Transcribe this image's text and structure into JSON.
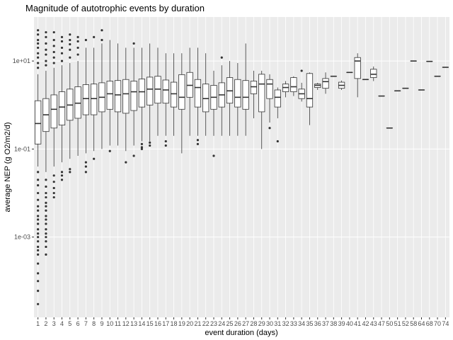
{
  "chart_data": {
    "type": "boxplot",
    "title": "Magnitude of autotrophic events by duration",
    "xlabel": "event duration (days)",
    "ylabel": "average NEP (g O2/m2/d)",
    "y_scale": "log10",
    "ylim": [
      1.5e-05,
      100
    ],
    "y_ticks": [
      {
        "value": 0.001,
        "label": "1e-03"
      },
      {
        "value": 0.1,
        "label": "1e-01"
      },
      {
        "value": 10,
        "label": "1e+01"
      }
    ],
    "colors": {
      "panel": "#ebebeb",
      "grid_major": "#ffffff",
      "grid_minor": "#f5f5f5",
      "box_fill": "#ffffff",
      "box_line": "#333333",
      "point": "#333333",
      "tick_text": "#4d4d4d"
    },
    "categories": [
      "1",
      "2",
      "3",
      "4",
      "5",
      "6",
      "7",
      "8",
      "9",
      "10",
      "11",
      "12",
      "13",
      "14",
      "15",
      "16",
      "17",
      "18",
      "19",
      "20",
      "21",
      "22",
      "23",
      "24",
      "25",
      "26",
      "27",
      "28",
      "29",
      "30",
      "31",
      "32",
      "33",
      "34",
      "35",
      "36",
      "37",
      "38",
      "39",
      "40",
      "41",
      "42",
      "43",
      "47",
      "50",
      "51",
      "52",
      "58",
      "64",
      "68",
      "70",
      "74"
    ],
    "boxes": [
      {
        "x": "1",
        "min": 0.04,
        "q1": 0.13,
        "median": 0.38,
        "q3": 1.25,
        "max": 5,
        "outliers": [
          7,
          9,
          12,
          15,
          20,
          25,
          30,
          40,
          50,
          0.03,
          0.02,
          0.015,
          0.01,
          0.007,
          0.005,
          0.004,
          0.003,
          0.0025,
          0.002,
          0.0015,
          0.0012,
          0.001,
          0.0008,
          0.0006,
          0.0005,
          0.0004,
          0.00025,
          0.00015,
          0.0001,
          6e-05,
          3e-05
        ]
      },
      {
        "x": "2",
        "min": 0.03,
        "q1": 0.25,
        "median": 0.6,
        "q3": 1.4,
        "max": 6,
        "outliers": [
          8,
          10,
          14,
          18,
          25,
          35,
          45,
          0.02,
          0.014,
          0.01,
          0.008,
          0.006,
          0.005,
          0.004,
          0.003,
          0.0025,
          0.002,
          0.0015,
          0.0012,
          0.001,
          0.0008,
          0.0006,
          0.0004
        ]
      },
      {
        "x": "3",
        "min": 0.04,
        "q1": 0.3,
        "median": 0.8,
        "q3": 1.7,
        "max": 7,
        "outliers": [
          9,
          12,
          16,
          22,
          30,
          45,
          0.025,
          0.018,
          0.013,
          0.01,
          0.008
        ]
      },
      {
        "x": "4",
        "min": 0.05,
        "q1": 0.35,
        "median": 0.9,
        "q3": 2.0,
        "max": 8,
        "outliers": [
          10,
          15,
          20,
          28,
          35,
          0.03,
          0.025,
          0.02
        ]
      },
      {
        "x": "5",
        "min": 0.06,
        "q1": 0.45,
        "median": 1.0,
        "q3": 2.3,
        "max": 9,
        "outliers": [
          12,
          18,
          24,
          30,
          40,
          0.035,
          0.03
        ]
      },
      {
        "x": "6",
        "min": 0.07,
        "q1": 0.5,
        "median": 1.1,
        "q3": 2.6,
        "max": 10,
        "outliers": [
          14,
          20,
          28,
          35
        ]
      },
      {
        "x": "7",
        "min": 0.08,
        "q1": 0.6,
        "median": 1.4,
        "q3": 2.9,
        "max": 20,
        "outliers": [
          30,
          0.05,
          0.04,
          0.03
        ]
      },
      {
        "x": "8",
        "min": 0.09,
        "q1": 0.6,
        "median": 1.4,
        "q3": 3.0,
        "max": 20,
        "outliers": [
          35,
          0.06
        ]
      },
      {
        "x": "9",
        "min": 0.1,
        "q1": 0.7,
        "median": 1.5,
        "q3": 3.2,
        "max": 25,
        "outliers": [
          30,
          50
        ]
      },
      {
        "x": "10",
        "min": 0.12,
        "q1": 0.8,
        "median": 1.8,
        "q3": 3.5,
        "max": 30,
        "outliers": [
          0.09
        ]
      },
      {
        "x": "11",
        "min": 0.12,
        "q1": 0.7,
        "median": 1.7,
        "q3": 3.6,
        "max": 25,
        "outliers": []
      },
      {
        "x": "12",
        "min": 0.09,
        "q1": 0.65,
        "median": 1.8,
        "q3": 3.8,
        "max": 20,
        "outliers": [
          0.05
        ]
      },
      {
        "x": "13",
        "min": 0.12,
        "q1": 0.75,
        "median": 2.0,
        "q3": 3.5,
        "max": 20,
        "outliers": [
          25,
          0.07
        ]
      },
      {
        "x": "14",
        "min": 0.15,
        "q1": 0.9,
        "median": 2.0,
        "q3": 3.9,
        "max": 20,
        "outliers": [
          0.13,
          0.11,
          0.1
        ]
      },
      {
        "x": "15",
        "min": 0.15,
        "q1": 1.0,
        "median": 2.3,
        "q3": 4.3,
        "max": 25,
        "outliers": [
          0.14,
          0.12
        ]
      },
      {
        "x": "16",
        "min": 0.2,
        "q1": 1.1,
        "median": 2.3,
        "q3": 4.5,
        "max": 20,
        "outliers": []
      },
      {
        "x": "17",
        "min": 0.2,
        "q1": 1.1,
        "median": 2.2,
        "q3": 3.7,
        "max": 15,
        "outliers": [
          0.15,
          0.12
        ]
      },
      {
        "x": "18",
        "min": 0.2,
        "q1": 0.9,
        "median": 1.8,
        "q3": 3.3,
        "max": 15,
        "outliers": []
      },
      {
        "x": "19",
        "min": 0.08,
        "q1": 0.8,
        "median": 1.5,
        "q3": 4.9,
        "max": 15,
        "outliers": []
      },
      {
        "x": "20",
        "min": 0.2,
        "q1": 1.5,
        "median": 2.8,
        "q3": 5.5,
        "max": 20,
        "outliers": []
      },
      {
        "x": "21",
        "min": 0.2,
        "q1": 0.9,
        "median": 2.5,
        "q3": 3.8,
        "max": 20,
        "outliers": [
          0.16,
          0.13
        ]
      },
      {
        "x": "22",
        "min": 0.2,
        "q1": 0.7,
        "median": 1.4,
        "q3": 3.0,
        "max": 15,
        "outliers": []
      },
      {
        "x": "23",
        "min": 0.2,
        "q1": 0.8,
        "median": 1.5,
        "q3": 2.8,
        "max": 6,
        "outliers": [
          0.07
        ]
      },
      {
        "x": "24",
        "min": 0.2,
        "q1": 0.9,
        "median": 1.7,
        "q3": 3.2,
        "max": 8,
        "outliers": [
          12
        ]
      },
      {
        "x": "25",
        "min": 0.2,
        "q1": 1.1,
        "median": 2.1,
        "q3": 4.2,
        "max": 10,
        "outliers": []
      },
      {
        "x": "26",
        "min": 0.2,
        "q1": 0.9,
        "median": 1.5,
        "q3": 3.8,
        "max": 9,
        "outliers": []
      },
      {
        "x": "27",
        "min": 0.2,
        "q1": 0.8,
        "median": 1.5,
        "q3": 3.6,
        "max": 25,
        "outliers": []
      },
      {
        "x": "28",
        "min": 0.5,
        "q1": 1.8,
        "median": 2.6,
        "q3": 3.5,
        "max": 6,
        "outliers": []
      },
      {
        "x": "29",
        "min": 0.1,
        "q1": 0.7,
        "median": 3.0,
        "q3": 5.0,
        "max": 6,
        "outliers": []
      },
      {
        "x": "30",
        "min": 0.4,
        "q1": 1.4,
        "median": 3.0,
        "q3": 3.8,
        "max": 5,
        "outliers": [
          0.3
        ]
      },
      {
        "x": "31",
        "min": 0.5,
        "q1": 0.9,
        "median": 1.5,
        "q3": 2.2,
        "max": 2.5,
        "outliers": [
          0.15
        ]
      },
      {
        "x": "32",
        "min": 1.5,
        "q1": 2.0,
        "median": 2.5,
        "q3": 3.0,
        "max": 3.5,
        "outliers": []
      },
      {
        "x": "33",
        "min": 1.6,
        "q1": 2.0,
        "median": 2.6,
        "q3": 4.2,
        "max": 4.5,
        "outliers": []
      },
      {
        "x": "34",
        "min": 1.2,
        "q1": 1.4,
        "median": 1.8,
        "q3": 2.3,
        "max": 3.2,
        "outliers": [
          6
        ]
      },
      {
        "x": "35",
        "min": 0.35,
        "q1": 0.9,
        "median": 1.4,
        "q3": 5.2,
        "max": 5.5,
        "outliers": []
      },
      {
        "x": "36",
        "min": 2.2,
        "q1": 2.5,
        "median": 2.8,
        "q3": 3.0,
        "max": 3.2,
        "outliers": []
      },
      {
        "x": "37",
        "min": 1.8,
        "q1": 2.4,
        "median": 3.4,
        "q3": 4.0,
        "max": 5.5,
        "outliers": []
      },
      {
        "x": "38",
        "min": 4.5,
        "q1": 4.5,
        "median": 4.5,
        "q3": 4.5,
        "max": 4.5,
        "outliers": []
      },
      {
        "x": "39",
        "min": 2.2,
        "q1": 2.4,
        "median": 2.8,
        "q3": 3.3,
        "max": 3.6,
        "outliers": []
      },
      {
        "x": "40",
        "min": 5.5,
        "q1": 5.5,
        "median": 5.5,
        "q3": 5.5,
        "max": 5.5,
        "outliers": []
      },
      {
        "x": "41",
        "min": 1.5,
        "q1": 4.0,
        "median": 10.0,
        "q3": 12.0,
        "max": 15,
        "outliers": []
      },
      {
        "x": "42",
        "min": 3.8,
        "q1": 3.8,
        "median": 3.8,
        "q3": 3.8,
        "max": 3.8,
        "outliers": []
      },
      {
        "x": "43",
        "min": 3.5,
        "q1": 4.2,
        "median": 5.0,
        "q3": 6.5,
        "max": 7.5,
        "outliers": []
      },
      {
        "x": "47",
        "min": 1.6,
        "q1": 1.6,
        "median": 1.6,
        "q3": 1.6,
        "max": 1.6,
        "outliers": []
      },
      {
        "x": "50",
        "min": 0.3,
        "q1": 0.3,
        "median": 0.3,
        "q3": 0.3,
        "max": 0.3,
        "outliers": []
      },
      {
        "x": "51",
        "min": 2.1,
        "q1": 2.1,
        "median": 2.1,
        "q3": 2.1,
        "max": 2.1,
        "outliers": []
      },
      {
        "x": "52",
        "min": 2.4,
        "q1": 2.4,
        "median": 2.4,
        "q3": 2.4,
        "max": 2.4,
        "outliers": []
      },
      {
        "x": "58",
        "min": 10,
        "q1": 10,
        "median": 10,
        "q3": 10,
        "max": 10,
        "outliers": []
      },
      {
        "x": "64",
        "min": 2.2,
        "q1": 2.2,
        "median": 2.2,
        "q3": 2.2,
        "max": 2.2,
        "outliers": []
      },
      {
        "x": "68",
        "min": 9.8,
        "q1": 9.8,
        "median": 9.8,
        "q3": 9.8,
        "max": 9.8,
        "outliers": []
      },
      {
        "x": "70",
        "min": 4.5,
        "q1": 4.5,
        "median": 4.5,
        "q3": 4.5,
        "max": 4.5,
        "outliers": []
      },
      {
        "x": "74",
        "min": 7.2,
        "q1": 7.2,
        "median": 7.2,
        "q3": 7.2,
        "max": 7.2,
        "outliers": []
      }
    ]
  }
}
